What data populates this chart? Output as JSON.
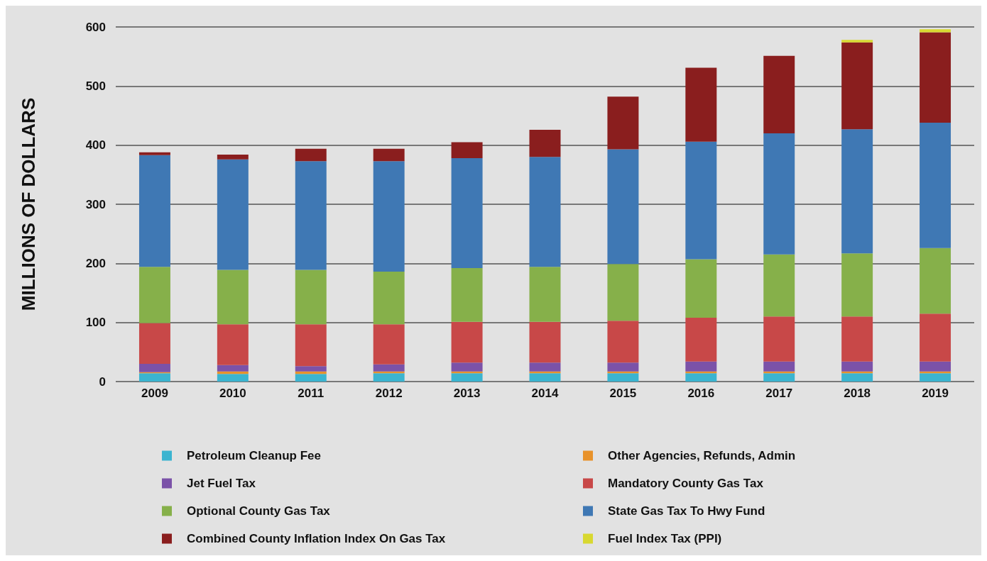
{
  "chart_data": {
    "type": "bar",
    "stacked": true,
    "ylabel": "MILLIONS OF DOLLARS",
    "categories": [
      "2009",
      "2010",
      "2011",
      "2012",
      "2013",
      "2014",
      "2015",
      "2016",
      "2017",
      "2018",
      "2019"
    ],
    "ylim": [
      0,
      600
    ],
    "yticks": [
      0,
      100,
      200,
      300,
      400,
      500,
      600
    ],
    "grid": "y",
    "legend": "bottom",
    "series": [
      {
        "name": "Petroleum Cleanup Fee",
        "color": "#3bb4d0",
        "values": [
          14,
          13,
          13,
          14,
          14,
          14,
          14,
          14,
          14,
          14,
          14
        ]
      },
      {
        "name": "Other Agencies, Refunds, Admin",
        "color": "#e8922a",
        "values": [
          2,
          4,
          4,
          3,
          3,
          3,
          3,
          3,
          3,
          3,
          3
        ]
      },
      {
        "name": "Jet Fuel Tax",
        "color": "#7b52a8",
        "values": [
          14,
          11,
          9,
          12,
          15,
          15,
          15,
          17,
          17,
          17,
          17
        ]
      },
      {
        "name": "Mandatory County Gas Tax",
        "color": "#c84848",
        "values": [
          69,
          69,
          71,
          68,
          69,
          69,
          71,
          74,
          76,
          76,
          81
        ]
      },
      {
        "name": "Optional County Gas Tax",
        "color": "#86b04a",
        "values": [
          95,
          92,
          92,
          89,
          91,
          93,
          96,
          99,
          105,
          107,
          111
        ]
      },
      {
        "name": "State Gas Tax To Hwy Fund",
        "color": "#3f78b4",
        "values": [
          189,
          187,
          184,
          187,
          186,
          186,
          194,
          199,
          205,
          210,
          212
        ]
      },
      {
        "name": "Combined County Inflation Index On Gas Tax",
        "color": "#8a1e1e",
        "values": [
          5,
          8,
          21,
          21,
          27,
          46,
          89,
          125,
          131,
          147,
          153
        ]
      },
      {
        "name": "Fuel Index Tax (PPI)",
        "color": "#d8d830",
        "values": [
          null,
          null,
          null,
          null,
          null,
          null,
          null,
          null,
          null,
          4,
          5
        ]
      }
    ]
  }
}
